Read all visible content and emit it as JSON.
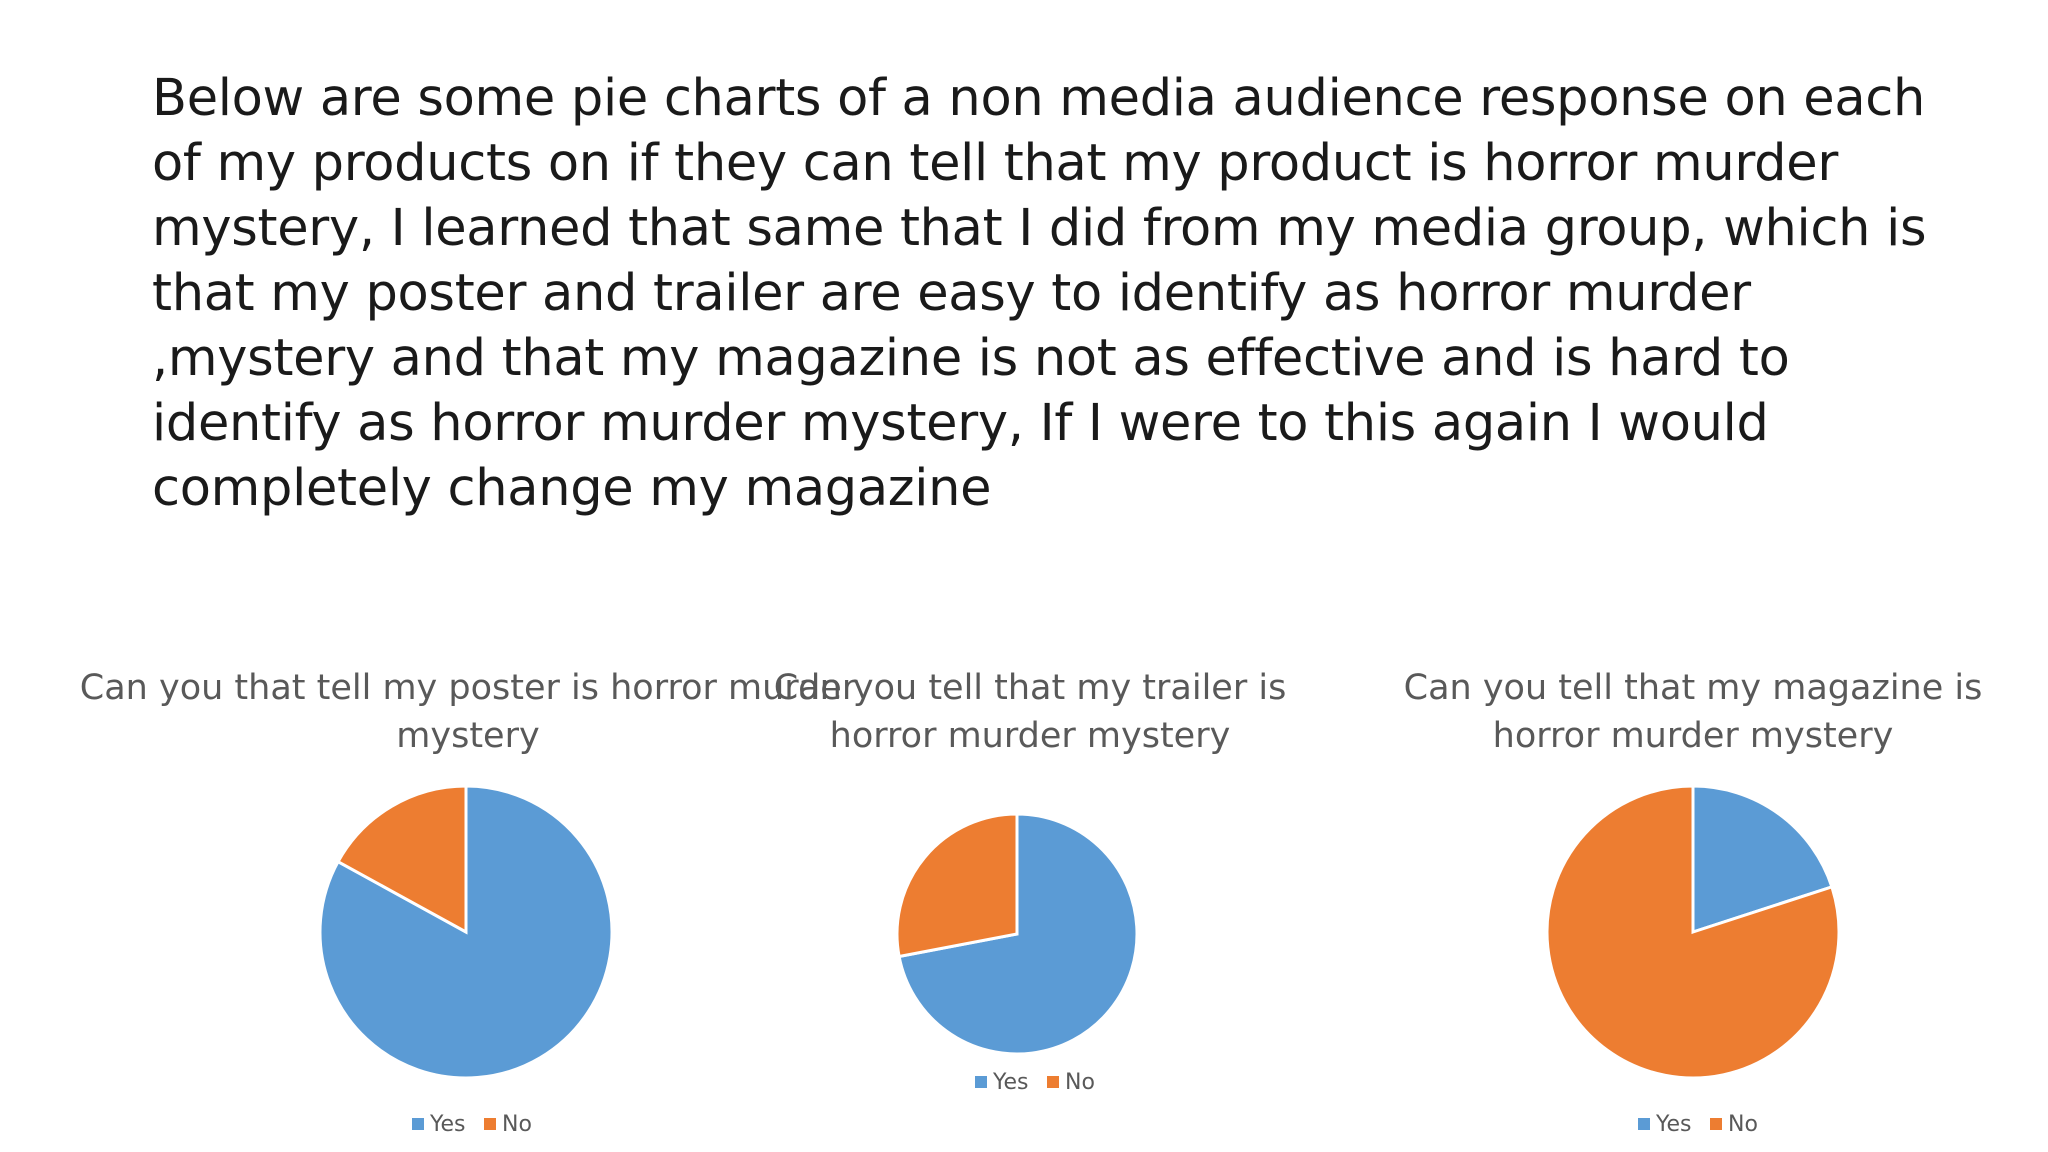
{
  "slide": {
    "body_text": "Below are some pie charts of a non media audience response on each of my products on if they can tell that my product is horror murder mystery, I learned that same that I did from my media group, which is that my poster and trailer are easy to identify as horror murder ,mystery and that my magazine is not as effective and is hard to identify as horror murder mystery, If I were to this again I would completely change my magazine"
  },
  "colors": {
    "yes": "#5b9bd5",
    "no": "#ed7d31"
  },
  "chart_data": [
    {
      "type": "pie",
      "title_lines": [
        "Can you that tell my poster is horror murder",
        "mystery"
      ],
      "categories": [
        "Yes",
        "No"
      ],
      "values": [
        83,
        17
      ],
      "legend": "bottom"
    },
    {
      "type": "pie",
      "title_lines": [
        "Can you tell that my trailer is",
        "horror murder mystery"
      ],
      "categories": [
        "Yes",
        "No"
      ],
      "values": [
        72,
        28
      ],
      "legend": "bottom"
    },
    {
      "type": "pie",
      "title_lines": [
        "Can you tell that my magazine is",
        "horror murder mystery"
      ],
      "categories": [
        "Yes",
        "No"
      ],
      "values": [
        20,
        80
      ],
      "legend": "bottom"
    }
  ]
}
